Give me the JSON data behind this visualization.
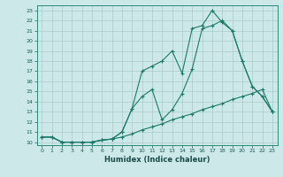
{
  "xlabel": "Humidex (Indice chaleur)",
  "bg_color": "#cce8e8",
  "line_color": "#1a7a6a",
  "grid_color": "#aacccc",
  "xlim": [
    -0.5,
    23.5
  ],
  "ylim": [
    9.7,
    23.5
  ],
  "xticks": [
    0,
    1,
    2,
    3,
    4,
    5,
    6,
    7,
    8,
    9,
    10,
    11,
    12,
    13,
    14,
    15,
    16,
    17,
    18,
    19,
    20,
    21,
    22,
    23
  ],
  "yticks": [
    10,
    11,
    12,
    13,
    14,
    15,
    16,
    17,
    18,
    19,
    20,
    21,
    22,
    23
  ],
  "line1_x": [
    0,
    1,
    2,
    3,
    4,
    5,
    6,
    7,
    8,
    9,
    10,
    11,
    12,
    13,
    14,
    15,
    16,
    17,
    18,
    19,
    20,
    21,
    22,
    23
  ],
  "line1_y": [
    10.5,
    10.5,
    10.0,
    10.0,
    10.0,
    10.0,
    10.2,
    10.3,
    11.0,
    13.3,
    14.5,
    15.2,
    12.2,
    13.2,
    14.8,
    17.2,
    21.2,
    21.5,
    22.0,
    21.0,
    18.0,
    15.5,
    14.5,
    13.0
  ],
  "line2_x": [
    0,
    1,
    2,
    3,
    4,
    5,
    6,
    7,
    8,
    9,
    10,
    11,
    12,
    13,
    14,
    15,
    16,
    17,
    18,
    19,
    20,
    21,
    22,
    23
  ],
  "line2_y": [
    10.5,
    10.5,
    10.0,
    10.0,
    10.0,
    10.0,
    10.2,
    10.3,
    11.0,
    13.3,
    17.0,
    17.5,
    18.0,
    19.0,
    16.8,
    21.2,
    21.5,
    23.0,
    21.8,
    21.0,
    18.0,
    15.5,
    14.5,
    13.0
  ],
  "line3_x": [
    0,
    1,
    2,
    3,
    4,
    5,
    6,
    7,
    8,
    9,
    10,
    11,
    12,
    13,
    14,
    15,
    16,
    17,
    18,
    19,
    20,
    21,
    22,
    23
  ],
  "line3_y": [
    10.5,
    10.5,
    10.0,
    10.0,
    10.0,
    10.0,
    10.2,
    10.3,
    10.5,
    10.8,
    11.2,
    11.5,
    11.8,
    12.2,
    12.5,
    12.8,
    13.2,
    13.5,
    13.8,
    14.2,
    14.5,
    14.8,
    15.2,
    13.0
  ]
}
